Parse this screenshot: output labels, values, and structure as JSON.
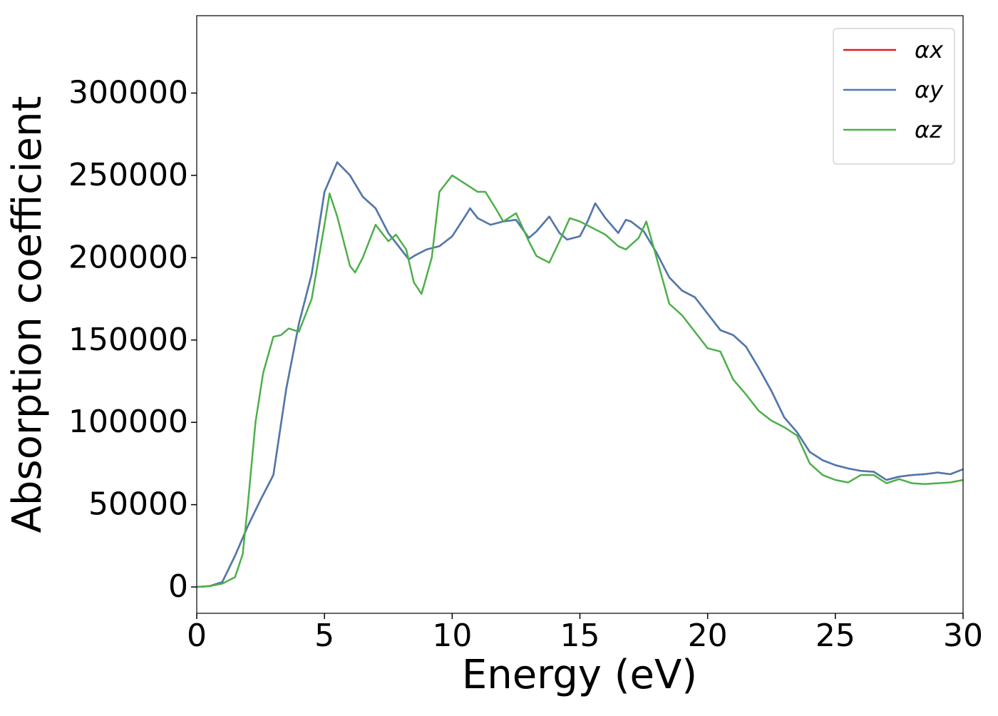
{
  "chart_data": {
    "type": "line",
    "x_label": "Energy (eV)",
    "y_label": "Absorption coefficient",
    "xlim": [
      0,
      30
    ],
    "xticks": [
      0,
      5,
      10,
      15,
      20,
      25,
      30
    ],
    "ylim": [
      -16000,
      347000
    ],
    "yticks": [
      0,
      50000,
      100000,
      150000,
      200000,
      250000,
      300000
    ],
    "grid": false,
    "legend": "upper right",
    "series": [
      {
        "name": "αx",
        "color": "#e41a1c",
        "x": [
          0,
          0.5,
          1,
          1.5,
          2,
          2.5,
          3,
          3.5,
          4,
          4.5,
          5,
          5.5,
          6,
          6.5,
          7,
          7.5,
          8,
          8.3,
          8.5,
          9,
          9.5,
          10,
          10.5,
          10.7,
          11,
          11.5,
          12,
          12.5,
          13,
          13.3,
          13.8,
          14.2,
          14.5,
          15,
          15.3,
          15.6,
          16,
          16.5,
          16.8,
          17,
          17.5,
          18,
          18.5,
          19,
          19.5,
          20,
          20.5,
          21,
          21.5,
          22,
          22.5,
          23,
          23.5,
          24,
          24.5,
          25,
          25.5,
          26,
          26.5,
          27,
          27.5,
          28,
          28.5,
          29,
          29.5,
          30
        ],
        "values": [
          0,
          500,
          3000,
          19000,
          37000,
          53000,
          68000,
          120000,
          160000,
          190000,
          240000,
          258000,
          250000,
          237000,
          230000,
          215000,
          205000,
          199000,
          201000,
          205000,
          207000,
          213000,
          225000,
          230000,
          224000,
          220000,
          222000,
          223000,
          212000,
          216000,
          225000,
          215000,
          211000,
          213000,
          222000,
          233000,
          224000,
          215000,
          223000,
          222000,
          216000,
          203000,
          188000,
          180000,
          176000,
          166000,
          156000,
          153000,
          146000,
          133000,
          119000,
          103000,
          94000,
          82000,
          77000,
          74000,
          72000,
          70500,
          70000,
          65000,
          67000,
          68000,
          68500,
          69500,
          68500,
          71500
        ]
      },
      {
        "name": "αy",
        "color": "#4a7bb0",
        "x": [
          0,
          0.5,
          1,
          1.5,
          2,
          2.5,
          3,
          3.5,
          4,
          4.5,
          5,
          5.5,
          6,
          6.5,
          7,
          7.5,
          8,
          8.3,
          8.5,
          9,
          9.5,
          10,
          10.5,
          10.7,
          11,
          11.5,
          12,
          12.5,
          13,
          13.3,
          13.8,
          14.2,
          14.5,
          15,
          15.3,
          15.6,
          16,
          16.5,
          16.8,
          17,
          17.5,
          18,
          18.5,
          19,
          19.5,
          20,
          20.5,
          21,
          21.5,
          22,
          22.5,
          23,
          23.5,
          24,
          24.5,
          25,
          25.5,
          26,
          26.5,
          27,
          27.5,
          28,
          28.5,
          29,
          29.5,
          30
        ],
        "values": [
          0,
          500,
          3000,
          19000,
          37000,
          53000,
          68000,
          120000,
          160000,
          190000,
          240000,
          258000,
          250000,
          237000,
          230000,
          215000,
          205000,
          199000,
          201000,
          205000,
          207000,
          213000,
          225000,
          230000,
          224000,
          220000,
          222000,
          223000,
          212000,
          216000,
          225000,
          215000,
          211000,
          213000,
          222000,
          233000,
          224000,
          215000,
          223000,
          222000,
          216000,
          203000,
          188000,
          180000,
          176000,
          166000,
          156000,
          153000,
          146000,
          133000,
          119000,
          103000,
          94000,
          82000,
          77000,
          74000,
          72000,
          70500,
          70000,
          65000,
          67000,
          68000,
          68500,
          69500,
          68500,
          71500
        ]
      },
      {
        "name": "αz",
        "color": "#4daf4a",
        "x": [
          0,
          0.5,
          1,
          1.5,
          1.8,
          2,
          2.3,
          2.6,
          3,
          3.3,
          3.6,
          4,
          4.5,
          5,
          5.2,
          5.5,
          6,
          6.2,
          6.5,
          7,
          7.5,
          7.8,
          8.2,
          8.5,
          8.8,
          9.2,
          9.5,
          10,
          10.5,
          11,
          11.3,
          11.7,
          12,
          12.5,
          13,
          13.3,
          13.8,
          14.2,
          14.6,
          15,
          15.5,
          16,
          16.5,
          16.8,
          17.3,
          17.6,
          18,
          18.5,
          19,
          19.5,
          20,
          20.5,
          21,
          21.5,
          22,
          22.5,
          23,
          23.5,
          24,
          24.5,
          25,
          25.5,
          26,
          26.5,
          27,
          27.5,
          28,
          28.5,
          29,
          29.5,
          30
        ],
        "values": [
          0,
          500,
          2000,
          6000,
          20000,
          50000,
          100000,
          130000,
          152000,
          153000,
          157000,
          155000,
          175000,
          220000,
          239000,
          225000,
          195000,
          191000,
          200000,
          220000,
          210000,
          214000,
          205000,
          185000,
          178000,
          200000,
          240000,
          250000,
          245000,
          240000,
          240000,
          230000,
          222000,
          227000,
          210000,
          201000,
          197000,
          210000,
          224000,
          222000,
          218000,
          214000,
          207000,
          205000,
          212000,
          222000,
          200000,
          172000,
          165000,
          155000,
          145000,
          143000,
          126000,
          117000,
          107000,
          101000,
          97000,
          92000,
          75000,
          68000,
          65000,
          63500,
          68000,
          68000,
          63000,
          65500,
          63000,
          62500,
          63000,
          63500,
          65000
        ]
      }
    ]
  }
}
